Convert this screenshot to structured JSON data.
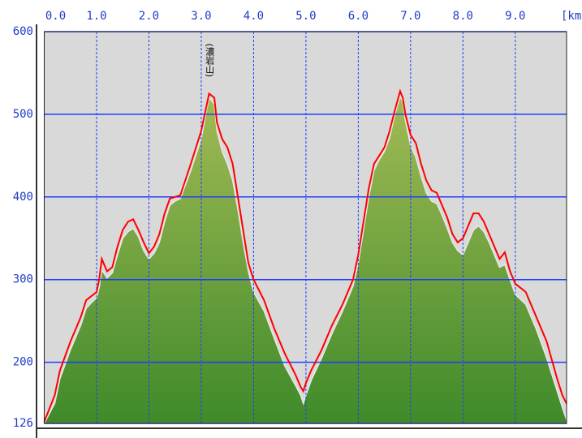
{
  "chart_data": {
    "type": "area",
    "x_label": "[km",
    "annotation": "(濃岩山)",
    "annotation_x": 3.15,
    "annotation_y": 525,
    "x": [
      0,
      0.2,
      0.3,
      0.5,
      0.6,
      0.7,
      0.8,
      0.9,
      1.0,
      1.05,
      1.1,
      1.2,
      1.3,
      1.4,
      1.5,
      1.6,
      1.7,
      1.8,
      1.9,
      2.0,
      2.1,
      2.2,
      2.3,
      2.4,
      2.5,
      2.6,
      2.8,
      3.0,
      3.1,
      3.15,
      3.25,
      3.3,
      3.4,
      3.5,
      3.6,
      3.7,
      3.8,
      3.9,
      4.0,
      4.2,
      4.4,
      4.6,
      4.8,
      4.9,
      4.95,
      5.0,
      5.1,
      5.3,
      5.5,
      5.7,
      5.9,
      6.0,
      6.1,
      6.2,
      6.3,
      6.4,
      6.5,
      6.6,
      6.7,
      6.8,
      6.85,
      6.9,
      7.0,
      7.1,
      7.2,
      7.3,
      7.4,
      7.5,
      7.6,
      7.7,
      7.8,
      7.9,
      8.0,
      8.1,
      8.2,
      8.3,
      8.4,
      8.5,
      8.6,
      8.7,
      8.8,
      8.9,
      9.0,
      9.2,
      9.4,
      9.6,
      9.8,
      9.9,
      9.98
    ],
    "series": [
      {
        "type": "area",
        "color": "#6aa03a",
        "values": [
          126,
          150,
          180,
          215,
          230,
          245,
          265,
          272,
          278,
          290,
          312,
          302,
          308,
          330,
          350,
          358,
          362,
          352,
          335,
          325,
          332,
          345,
          370,
          390,
          395,
          398,
          432,
          470,
          505,
          520,
          512,
          480,
          455,
          440,
          420,
          385,
          345,
          310,
          285,
          262,
          228,
          195,
          172,
          160,
          150,
          160,
          178,
          205,
          235,
          262,
          292,
          320,
          360,
          400,
          432,
          445,
          455,
          472,
          500,
          522,
          515,
          492,
          462,
          448,
          425,
          405,
          395,
          392,
          378,
          362,
          345,
          335,
          330,
          345,
          360,
          365,
          358,
          345,
          330,
          315,
          318,
          300,
          282,
          270,
          240,
          205,
          165,
          145,
          130
        ]
      },
      {
        "type": "line",
        "color": "#ff0000",
        "values": [
          128,
          160,
          190,
          225,
          240,
          255,
          275,
          280,
          285,
          300,
          325,
          310,
          315,
          340,
          360,
          370,
          373,
          360,
          345,
          332,
          340,
          355,
          380,
          398,
          400,
          402,
          440,
          480,
          510,
          525,
          520,
          490,
          470,
          460,
          440,
          400,
          360,
          320,
          300,
          275,
          240,
          210,
          185,
          170,
          165,
          175,
          190,
          215,
          245,
          270,
          300,
          330,
          370,
          410,
          440,
          450,
          460,
          480,
          505,
          528,
          520,
          500,
          475,
          465,
          440,
          420,
          408,
          405,
          390,
          375,
          355,
          345,
          350,
          365,
          380,
          380,
          370,
          355,
          340,
          325,
          333,
          310,
          295,
          285,
          255,
          225,
          180,
          160,
          150
        ]
      }
    ],
    "xlim": [
      0,
      9.98
    ],
    "xticks": [
      {
        "value": 0,
        "label": "0.0"
      },
      {
        "value": 1,
        "label": "1.0"
      },
      {
        "value": 2,
        "label": "2.0"
      },
      {
        "value": 3,
        "label": "3.0"
      },
      {
        "value": 4,
        "label": "4.0"
      },
      {
        "value": 5,
        "label": "5.0"
      },
      {
        "value": 6,
        "label": "6.0"
      },
      {
        "value": 7,
        "label": "7.0"
      },
      {
        "value": 8,
        "label": "8.0"
      },
      {
        "value": 9,
        "label": "9.0"
      }
    ],
    "ylim": [
      126,
      600
    ],
    "yticks": [
      126,
      200,
      300,
      400,
      500,
      600
    ],
    "grid": true,
    "grid_color": "#1f3cff",
    "background": "#d9d9d9"
  }
}
